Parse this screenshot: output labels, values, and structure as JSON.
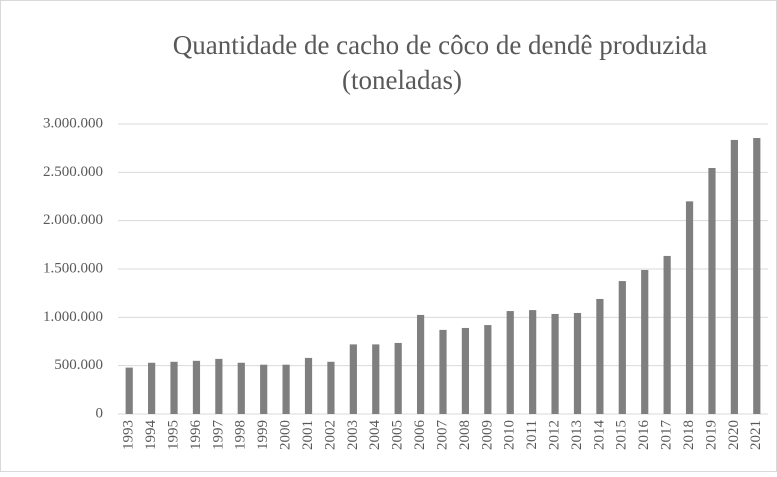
{
  "chart_data": {
    "type": "bar",
    "title": [
      "Quantidade  de cacho de côco de dendê produzida",
      "(toneladas)"
    ],
    "categories": [
      "1993",
      "1994",
      "1995",
      "1996",
      "1997",
      "1998",
      "1999",
      "2000",
      "2001",
      "2002",
      "2003",
      "2004",
      "2005",
      "2006",
      "2007",
      "2008",
      "2009",
      "2010",
      "2011",
      "2012",
      "2013",
      "2014",
      "2015",
      "2016",
      "2017",
      "2018",
      "2019",
      "2020",
      "2021"
    ],
    "values": [
      480000,
      530000,
      540000,
      550000,
      570000,
      530000,
      510000,
      510000,
      580000,
      540000,
      720000,
      720000,
      735000,
      1025000,
      870000,
      890000,
      920000,
      1065000,
      1075000,
      1035000,
      1045000,
      1190000,
      1375000,
      1490000,
      1635000,
      2200000,
      2545000,
      2835000,
      2855000
    ],
    "color": "#7f7f7f",
    "ylim": [
      0,
      3000000
    ],
    "yticks": [
      0,
      {
        "value": 500000,
        "label": "500.000"
      },
      {
        "value": 1000000,
        "label": "1.000.000"
      },
      {
        "value": 1500000,
        "label": "1.500.000"
      },
      {
        "value": 2000000,
        "label": "2.000.000"
      },
      {
        "value": 2500000,
        "label": "2.500.000"
      },
      {
        "value": 3000000,
        "label": "3.000.000"
      }
    ],
    "grid": true
  }
}
